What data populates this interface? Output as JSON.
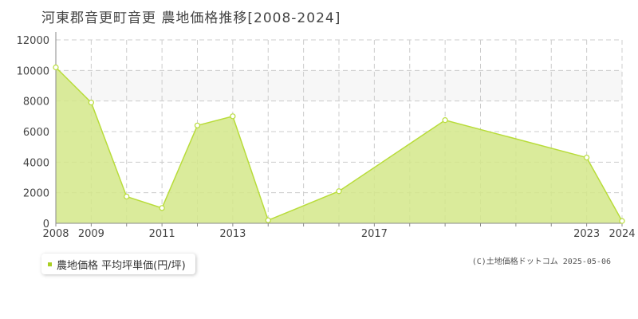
{
  "header": {
    "title": "河東郡音更町音更 農地価格推移[2008-2024]"
  },
  "legend": {
    "label": "農地価格 平均坪単価(円/坪)"
  },
  "credit": "(C)土地価格ドットコム 2025-05-06",
  "colors": {
    "fill": "#d3e88a",
    "line": "#b8dc3a",
    "point_fill": "#ffffff",
    "grid": "#cccccc",
    "band": "#f7f7f7",
    "swatch": "#a9cf22"
  },
  "chart_data": {
    "type": "area",
    "x": [
      2008,
      2009,
      2010,
      2011,
      2012,
      2013,
      2014,
      2015,
      2016,
      2017,
      2018,
      2019,
      2020,
      2021,
      2022,
      2023,
      2024
    ],
    "series": [
      {
        "name": "農地価格 平均坪単価(円/坪)",
        "points": [
          {
            "x": 2008,
            "y": 10200
          },
          {
            "x": 2009,
            "y": 7900
          },
          {
            "x": 2010,
            "y": 1750
          },
          {
            "x": 2011,
            "y": 1000
          },
          {
            "x": 2012,
            "y": 6400
          },
          {
            "x": 2013,
            "y": 7000
          },
          {
            "x": 2014,
            "y": 200
          },
          {
            "x": 2016,
            "y": 2100
          },
          {
            "x": 2019,
            "y": 6750
          },
          {
            "x": 2023,
            "y": 4300
          },
          {
            "x": 2024,
            "y": 150
          }
        ]
      }
    ],
    "xlim": [
      2008,
      2024
    ],
    "ylim": [
      0,
      12000
    ],
    "yticks": [
      0,
      2000,
      4000,
      6000,
      8000,
      10000,
      12000
    ],
    "xtick_labels": [
      {
        "x": 2008,
        "label": "2008"
      },
      {
        "x": 2009,
        "label": "2009"
      },
      {
        "x": 2011,
        "label": "2011"
      },
      {
        "x": 2013,
        "label": "2013"
      },
      {
        "x": 2017,
        "label": "2017"
      },
      {
        "x": 2023,
        "label": "2023"
      },
      {
        "x": 2024,
        "label": "2024"
      }
    ],
    "grid": true
  }
}
